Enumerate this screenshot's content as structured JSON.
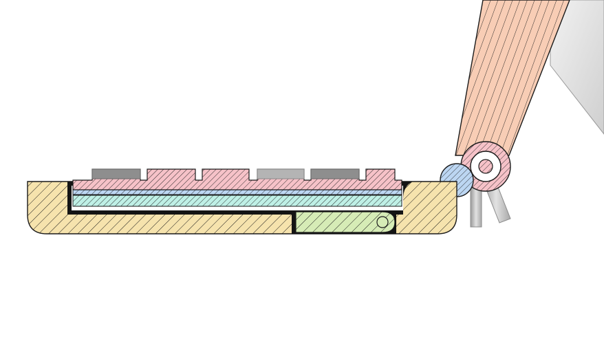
{
  "colors": {
    "background": "#ffffff",
    "outline": "#1a1a1a",
    "base_housing": "#f6e3ad",
    "keyboard_keys": "#f6c2c8",
    "membrane_blue": "#bcd6f2",
    "membrane_cyan": "#bff0e6",
    "battery_green": "#d6ecb6",
    "hinge_lid": "#f8cdb5",
    "hinge_ring": "#f6c2c8",
    "hinge_pin_blue": "#bcd6f2",
    "key_caps_gray": "#8e8e8e",
    "key_caps_light_gray": "#b4b4b4",
    "support_legs_gray": "#c4c4c4",
    "background_panel_gray": "#d7d7d7",
    "black_frame": "#141414"
  }
}
